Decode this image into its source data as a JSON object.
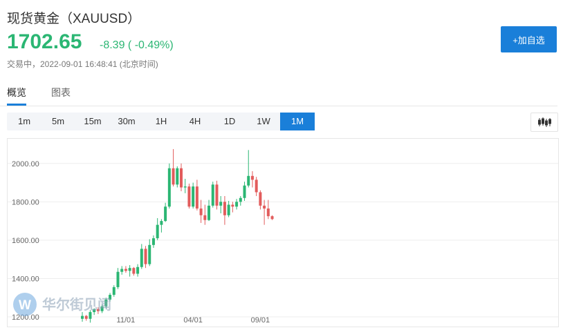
{
  "header": {
    "title": "现货黄金（XAUUSD）",
    "price": "1702.65",
    "change": "-8.39 ( -0.49%)",
    "status": "交易中，2022-09-01 16:48:41 (北京时间)",
    "add_button_label": "+加自选"
  },
  "tabs": [
    {
      "label": "概览",
      "active": true
    },
    {
      "label": "图表",
      "active": false
    }
  ],
  "periods": [
    {
      "label": "1m"
    },
    {
      "label": "5m"
    },
    {
      "label": "15m"
    },
    {
      "label": "30m"
    },
    {
      "label": "1H"
    },
    {
      "label": "4H"
    },
    {
      "label": "1D"
    },
    {
      "label": "1W"
    },
    {
      "label": "1M",
      "active": true
    }
  ],
  "watermark": {
    "text": "华尔街见闻",
    "logo_letter": "W"
  },
  "colors": {
    "up": "#2bb673",
    "down": "#e25c5c",
    "accent": "#1a7fd9",
    "grid": "#eeeeee",
    "axis_text": "#666666"
  },
  "chart_data": {
    "type": "candlestick",
    "ylim": [
      1200,
      2100
    ],
    "y_ticks": [
      "1200.00",
      "1400.00",
      "1600.00",
      "1800.00",
      "2000.00"
    ],
    "x_ticks": [
      {
        "label": "11/01",
        "index": 11
      },
      {
        "label": "04/01",
        "index": 28
      },
      {
        "label": "09/01",
        "index": 45
      }
    ],
    "candles": [
      [
        1190,
        1225,
        1175,
        1205
      ],
      [
        1205,
        1210,
        1180,
        1190
      ],
      [
        1190,
        1235,
        1170,
        1225
      ],
      [
        1225,
        1245,
        1210,
        1240
      ],
      [
        1240,
        1250,
        1215,
        1230
      ],
      [
        1230,
        1265,
        1220,
        1255
      ],
      [
        1255,
        1300,
        1245,
        1290
      ],
      [
        1290,
        1325,
        1280,
        1315
      ],
      [
        1315,
        1365,
        1305,
        1355
      ],
      [
        1355,
        1455,
        1345,
        1435
      ],
      [
        1435,
        1465,
        1420,
        1450
      ],
      [
        1450,
        1465,
        1430,
        1440
      ],
      [
        1440,
        1470,
        1410,
        1455
      ],
      [
        1455,
        1460,
        1415,
        1425
      ],
      [
        1425,
        1475,
        1410,
        1460
      ],
      [
        1460,
        1580,
        1450,
        1555
      ],
      [
        1555,
        1570,
        1455,
        1475
      ],
      [
        1475,
        1605,
        1465,
        1575
      ],
      [
        1575,
        1625,
        1560,
        1610
      ],
      [
        1610,
        1715,
        1600,
        1680
      ],
      [
        1680,
        1710,
        1640,
        1700
      ],
      [
        1700,
        1795,
        1695,
        1775
      ],
      [
        1775,
        2000,
        1765,
        1975
      ],
      [
        1975,
        2075,
        1880,
        1890
      ],
      [
        1890,
        1985,
        1875,
        1975
      ],
      [
        1975,
        2000,
        1855,
        1875
      ],
      [
        1875,
        1920,
        1845,
        1880
      ],
      [
        1880,
        1895,
        1765,
        1775
      ],
      [
        1775,
        1900,
        1765,
        1880
      ],
      [
        1880,
        1915,
        1755,
        1765
      ],
      [
        1765,
        1810,
        1690,
        1730
      ],
      [
        1730,
        1785,
        1680,
        1705
      ],
      [
        1705,
        1810,
        1700,
        1780
      ],
      [
        1780,
        1905,
        1770,
        1890
      ],
      [
        1890,
        1910,
        1760,
        1780
      ],
      [
        1780,
        1830,
        1740,
        1800
      ],
      [
        1800,
        1830,
        1680,
        1730
      ],
      [
        1730,
        1805,
        1720,
        1785
      ],
      [
        1785,
        1800,
        1745,
        1775
      ],
      [
        1775,
        1815,
        1760,
        1800
      ],
      [
        1800,
        1830,
        1780,
        1820
      ],
      [
        1820,
        1905,
        1805,
        1885
      ],
      [
        1885,
        2070,
        1875,
        1935
      ],
      [
        1935,
        1960,
        1875,
        1915
      ],
      [
        1915,
        1930,
        1830,
        1850
      ],
      [
        1850,
        1860,
        1760,
        1780
      ],
      [
        1780,
        1810,
        1680,
        1765
      ],
      [
        1765,
        1810,
        1710,
        1725
      ],
      [
        1725,
        1730,
        1705,
        1710
      ]
    ]
  }
}
